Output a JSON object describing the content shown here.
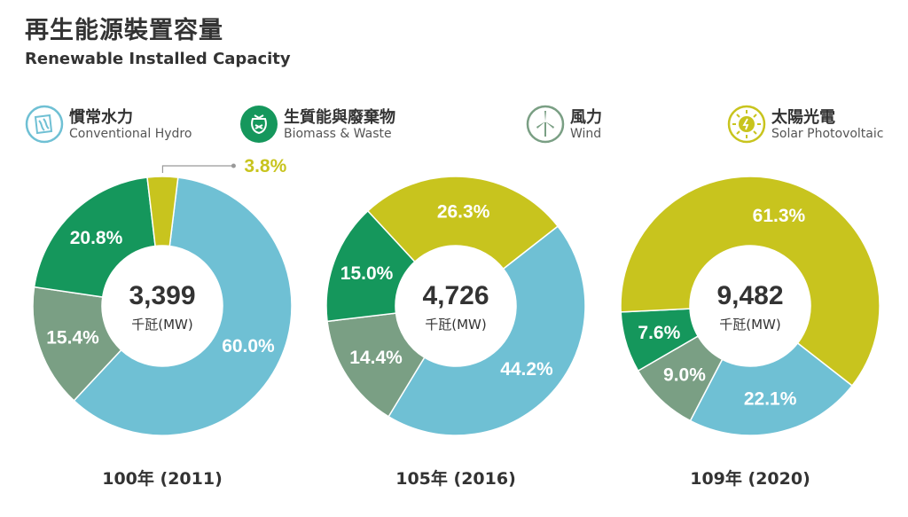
{
  "title": "再生能源裝置容量",
  "subtitle": "Renewable Installed Capacity",
  "legend": [
    {
      "zh": "慣常水力",
      "en": "Conventional Hydro",
      "color": "#6fc0d4",
      "icon": "hydro-icon"
    },
    {
      "zh": "生質能與廢棄物",
      "en": "Biomass & Waste",
      "color": "#15975c",
      "icon": "biomass-icon"
    },
    {
      "zh": "風力",
      "en": "Wind",
      "color": "#7a9f84",
      "icon": "wind-icon"
    },
    {
      "zh": "太陽光電",
      "en": "Solar Photovoltaic",
      "color": "#c8c41e",
      "icon": "solar-icon"
    }
  ],
  "chart_data": [
    {
      "type": "pie",
      "year_label": "100年 (2011)",
      "total": "3,399",
      "unit": "千瓩(MW)",
      "slices": [
        {
          "legend": "Conventional Hydro",
          "value": 60.0,
          "label": "60.0%",
          "color": "#6fc0d4"
        },
        {
          "legend": "Wind",
          "value": 15.4,
          "label": "15.4%",
          "color": "#7a9f84"
        },
        {
          "legend": "Biomass & Waste",
          "value": 20.8,
          "label": "20.8%",
          "color": "#15975c"
        },
        {
          "legend": "Solar Photovoltaic",
          "value": 3.8,
          "label": "3.8%",
          "color": "#c8c41e"
        }
      ]
    },
    {
      "type": "pie",
      "year_label": "105年 (2016)",
      "total": "4,726",
      "unit": "千瓩(MW)",
      "slices": [
        {
          "legend": "Conventional Hydro",
          "value": 44.2,
          "label": "44.2%",
          "color": "#6fc0d4"
        },
        {
          "legend": "Wind",
          "value": 14.4,
          "label": "14.4%",
          "color": "#7a9f84"
        },
        {
          "legend": "Biomass & Waste",
          "value": 15.0,
          "label": "15.0%",
          "color": "#15975c"
        },
        {
          "legend": "Solar Photovoltaic",
          "value": 26.3,
          "label": "26.3%",
          "color": "#c8c41e"
        }
      ]
    },
    {
      "type": "pie",
      "year_label": "109年 (2020)",
      "total": "9,482",
      "unit": "千瓩(MW)",
      "slices": [
        {
          "legend": "Conventional Hydro",
          "value": 22.1,
          "label": "22.1%",
          "color": "#6fc0d4"
        },
        {
          "legend": "Wind",
          "value": 9.0,
          "label": "9.0%",
          "color": "#7a9f84"
        },
        {
          "legend": "Biomass & Waste",
          "value": 7.6,
          "label": "7.6%",
          "color": "#15975c"
        },
        {
          "legend": "Solar Photovoltaic",
          "value": 61.3,
          "label": "61.3%",
          "color": "#c8c41e"
        }
      ]
    }
  ]
}
